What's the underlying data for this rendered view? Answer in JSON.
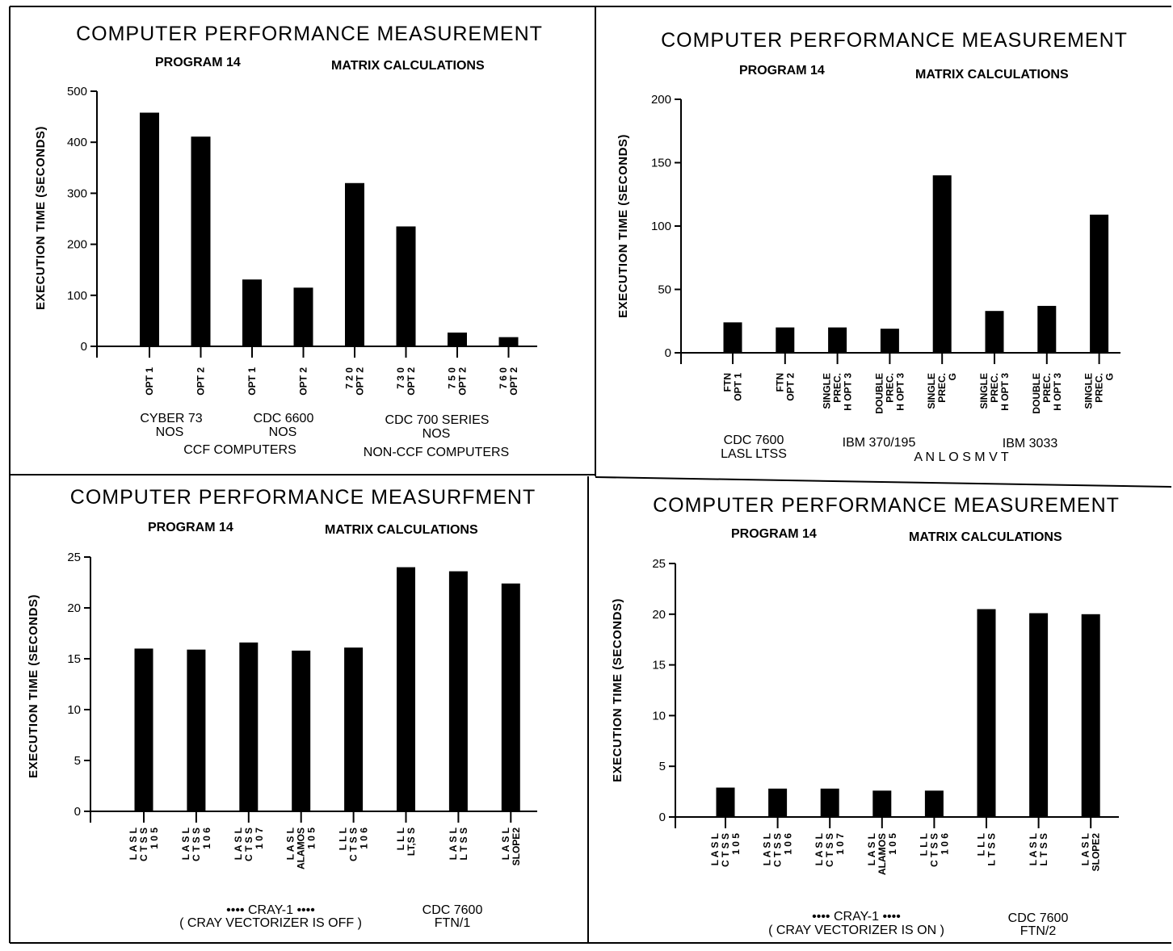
{
  "chart_data": [
    {
      "type": "bar",
      "title": "COMPUTER PERFORMANCE MEASUREMENT",
      "program": "PROGRAM  14",
      "subtitle": "MATRIX CALCULATIONS",
      "ylabel": "EXECUTION TIME (SECONDS)",
      "ylim": [
        0,
        500
      ],
      "yticks": [
        "0",
        "100",
        "200",
        "300",
        "400",
        "500"
      ],
      "categories": [
        [
          "OPT 1"
        ],
        [
          "OPT 2"
        ],
        [
          "OPT 1"
        ],
        [
          "OPT 2"
        ],
        [
          "7 2 0",
          "OPT 2"
        ],
        [
          "7 3 0",
          "OPT 2"
        ],
        [
          "7 5 0",
          "OPT 2"
        ],
        [
          "7 6 0",
          "OPT 2"
        ]
      ],
      "values": [
        458,
        411,
        131,
        115,
        320,
        235,
        27,
        18
      ],
      "groups": [
        "CYBER  73",
        "NOS",
        "CDC  6600",
        "NOS",
        "CDC  700  SERIES",
        "NOS",
        "CCF  COMPUTERS",
        "NON-CCF  COMPUTERS"
      ]
    },
    {
      "type": "bar",
      "title": "COMPUTER PERFORMANCE MEASUREMENT",
      "program": "PROGRAM  14",
      "subtitle": "MATRIX CALCULATIONS",
      "ylabel": "EXECUTION TIME (SECONDS)",
      "ylim": [
        0,
        200
      ],
      "yticks": [
        "0",
        "50",
        "100",
        "150",
        "200"
      ],
      "categories": [
        [
          "FTN",
          "OPT 1"
        ],
        [
          "FTN",
          "OPT 2"
        ],
        [
          "SINGLE",
          "PREC.",
          "H OPT 3"
        ],
        [
          "DOUBLE",
          "PREC.",
          "H OPT 3"
        ],
        [
          "SINGLE",
          "PREC.",
          "G"
        ],
        [
          "SINGLE",
          "PREC.",
          "H OPT 3"
        ],
        [
          "DOUBLE",
          "PREC.",
          "H OPT 3"
        ],
        [
          "SINGLE",
          "PREC.",
          "G"
        ]
      ],
      "values": [
        24,
        20,
        20,
        19,
        140,
        33,
        37,
        109
      ],
      "groups": [
        "CDC  7600",
        "LASL  LTSS",
        "IBM  370/195",
        "A  N  L     O  S  M  V  T",
        "IBM  3033"
      ]
    },
    {
      "type": "bar",
      "title": "COMPUTER PERFORMANCE MEASURFMENT",
      "program": "PROGRAM  14",
      "subtitle": "MATRIX CALCULATIONS",
      "ylabel": "EXECUTION TIME (SECONDS)",
      "ylim": [
        0,
        25
      ],
      "yticks": [
        "0",
        "5",
        "10",
        "15",
        "20",
        "25"
      ],
      "categories": [
        [
          "L A S L",
          "C T S S",
          "1 0 5"
        ],
        [
          "L A S L",
          "C T S S",
          "1 0 6"
        ],
        [
          "L A S L",
          "C T S S",
          "1 0 7"
        ],
        [
          "L A S L",
          "ALAMOS",
          "1 0 5"
        ],
        [
          "L L L",
          "C T S S",
          "1 0 6"
        ],
        [
          "L L L",
          "LT,S S"
        ],
        [
          "L A S L",
          "L T S S"
        ],
        [
          "L A S L",
          "SLOPE2"
        ]
      ],
      "values": [
        16.0,
        15.9,
        16.6,
        15.8,
        16.1,
        24.0,
        23.6,
        22.4
      ],
      "groups": [
        "•••• CRAY-1 ••••",
        "( CRAY VECTORIZER IS OFF )",
        "CDC  7600",
        "FTN/1"
      ]
    },
    {
      "type": "bar",
      "title": "COMPUTER PERFORMANCE MEASUREMENT",
      "program": "PROGRAM  14",
      "subtitle": "MATRIX CALCULATIONS",
      "ylabel": "EXECUTION TIME (SECONDS)",
      "ylim": [
        0,
        25
      ],
      "yticks": [
        "0",
        "5",
        "10",
        "15",
        "20",
        "25"
      ],
      "categories": [
        [
          "L A S L",
          "C T S S",
          "1 0 5"
        ],
        [
          "L A S L",
          "C T S S",
          "1 0 6"
        ],
        [
          "L A S L",
          "C T S S",
          "1 0 7"
        ],
        [
          "L A S L",
          "ALAMOS",
          "1 0 5"
        ],
        [
          "L L L",
          "C T S S",
          "1 0 6"
        ],
        [
          "L L L",
          "L T S S"
        ],
        [
          "L A S L",
          "L T S S"
        ],
        [
          "L A S L",
          "SLOPE2"
        ]
      ],
      "values": [
        2.9,
        2.8,
        2.8,
        2.6,
        2.6,
        20.5,
        20.1,
        20.0
      ],
      "groups": [
        "•••• CRAY-1 ••••",
        "( CRAY VECTORIZER IS ON )",
        "CDC  7600",
        "FTN/2"
      ]
    }
  ]
}
